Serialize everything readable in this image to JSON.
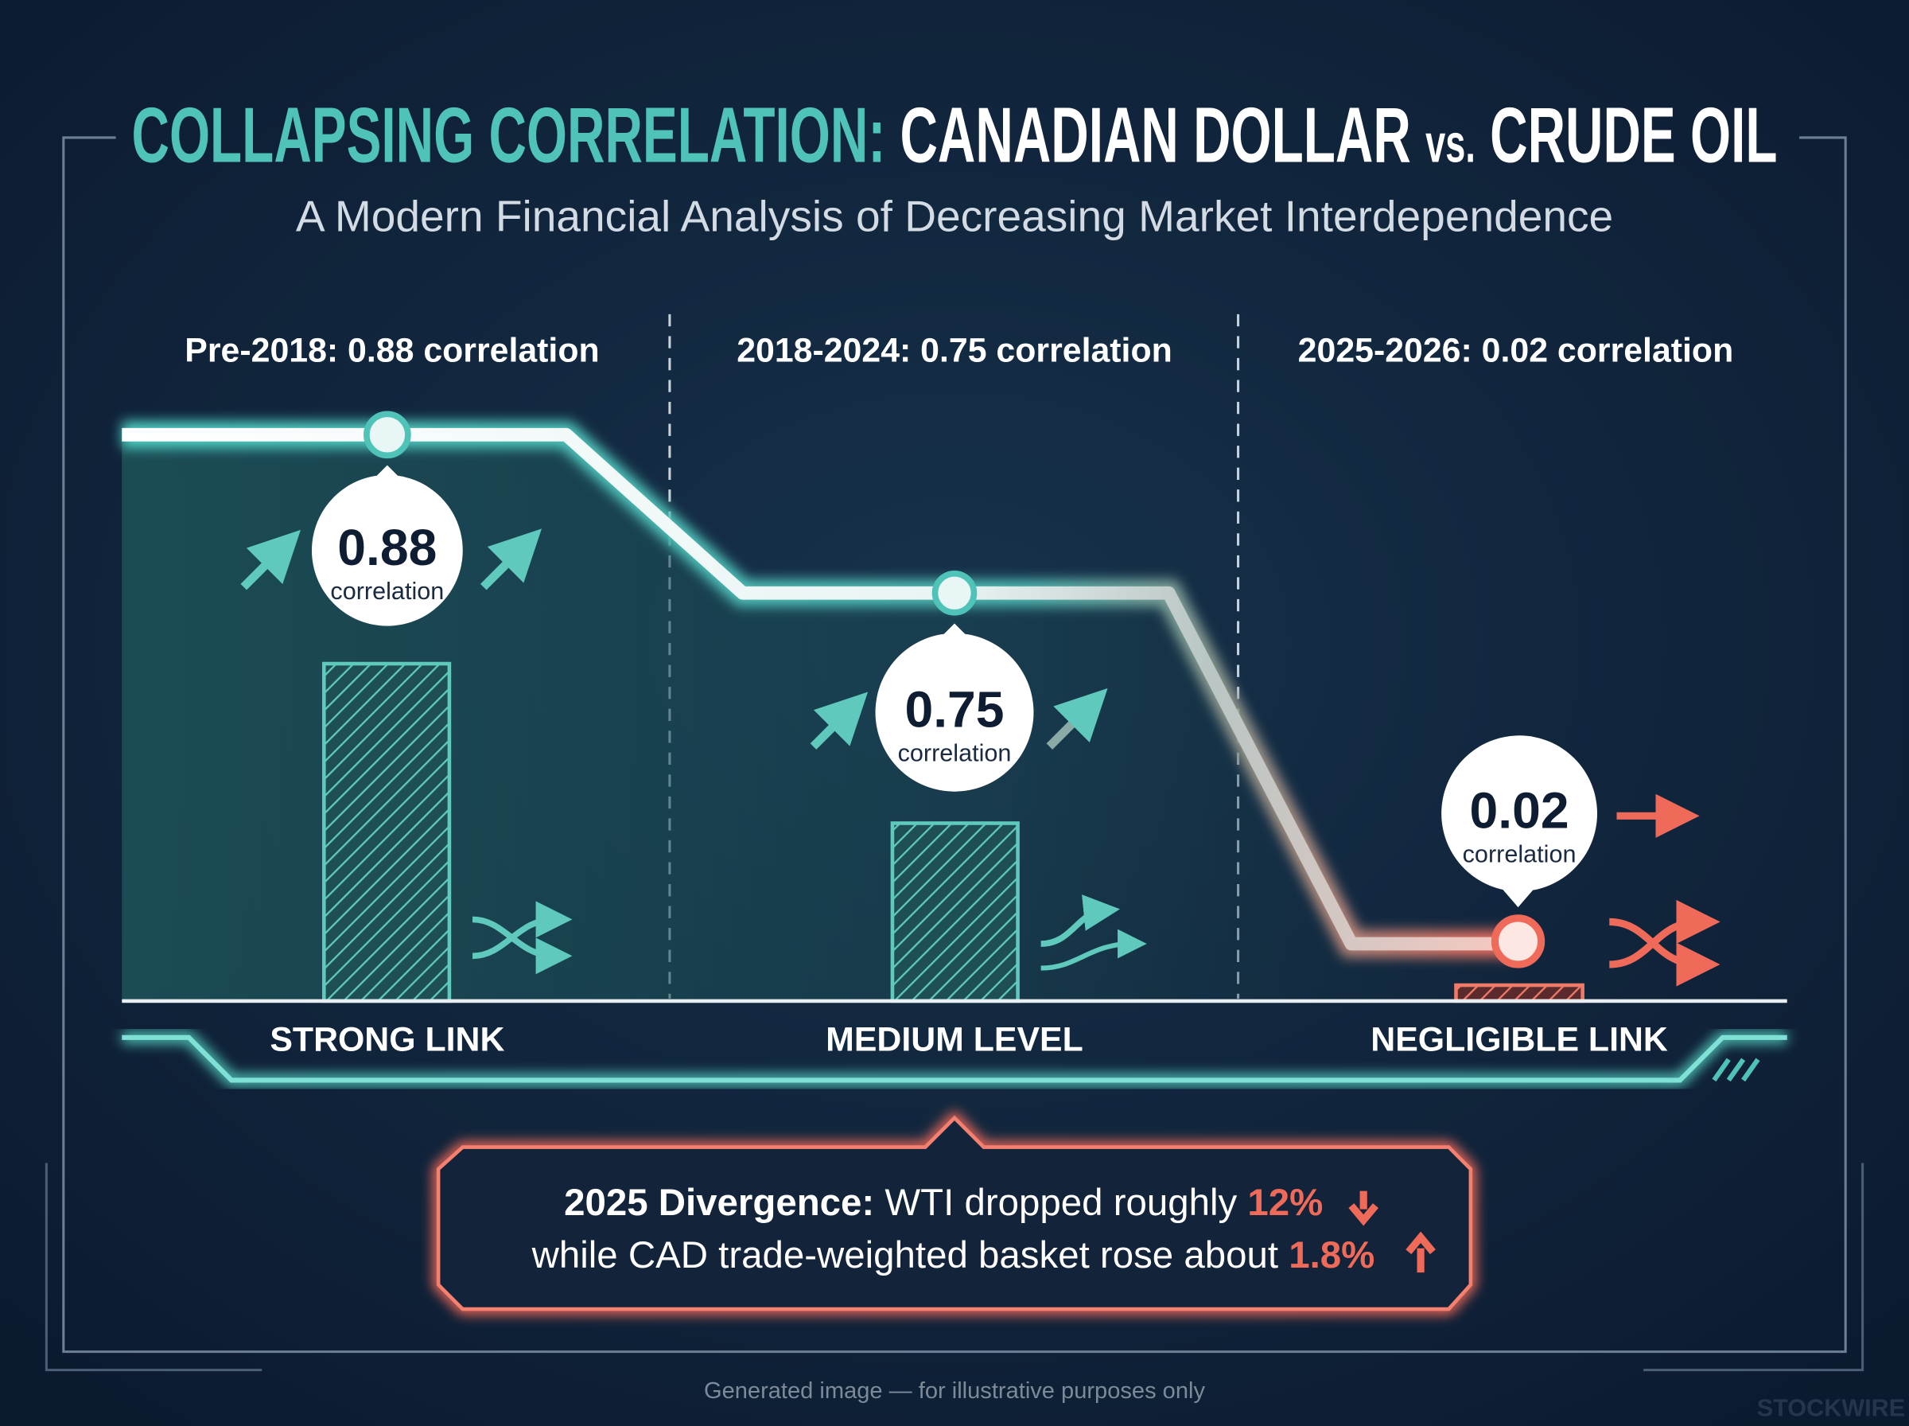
{
  "header": {
    "title_accent": "COLLAPSING CORRELATION:",
    "title_rest": "CANADIAN DOLLAR",
    "title_vs": "vs.",
    "title_end": "CRUDE OIL",
    "subtitle": "A Modern Financial Analysis of Decreasing Market Interdependence"
  },
  "periods": [
    {
      "heading": "Pre-2018: 0.88 correlation",
      "value": "0.88",
      "unit": "correlation",
      "label": "STRONG LINK"
    },
    {
      "heading": "2018-2024: 0.75 correlation",
      "value": "0.75",
      "unit": "correlation",
      "label": "MEDIUM LEVEL"
    },
    {
      "heading": "2025-2026: 0.02 correlation",
      "value": "0.02",
      "unit": "correlation",
      "label": "NEGLIGIBLE LINK"
    }
  ],
  "callout": {
    "lead": "2025 Divergence:",
    "line1": "WTI dropped roughly",
    "wti_change": "12%",
    "line2": "while CAD trade-weighted basket rose about",
    "cad_change": "1.8%"
  },
  "footer": {
    "note": "Generated image — for illustrative purposes only",
    "watermark": "STOCKWIRE"
  }
}
